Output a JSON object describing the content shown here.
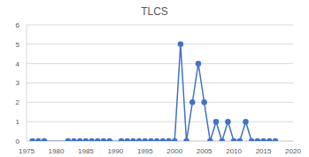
{
  "chart_data": {
    "type": "line",
    "title": "TLCS",
    "x": [
      1976,
      1977,
      1978,
      1982,
      1983,
      1984,
      1985,
      1986,
      1987,
      1988,
      1989,
      1991,
      1992,
      1993,
      1994,
      1995,
      1996,
      1997,
      1998,
      1999,
      2000,
      2001,
      2002,
      2003,
      2004,
      2005,
      2006,
      2007,
      2008,
      2009,
      2010,
      2011,
      2012,
      2013,
      2014,
      2015,
      2016,
      2017
    ],
    "values": [
      0,
      0,
      0,
      0,
      0,
      0,
      0,
      0,
      0,
      0,
      0,
      0,
      0,
      0,
      0,
      0,
      0,
      0,
      0,
      0,
      0,
      5,
      0,
      2,
      4,
      2,
      0,
      1,
      0,
      1,
      0,
      0,
      1,
      0,
      0,
      0,
      0,
      0
    ],
    "color": "#4472c4",
    "marker": "circle",
    "xlim": [
      1975,
      2020
    ],
    "xticks": [
      1975,
      1980,
      1985,
      1990,
      1995,
      2000,
      2005,
      2010,
      2015,
      2020
    ],
    "ylim": [
      0,
      6
    ],
    "yticks": [
      0,
      1,
      2,
      3,
      4,
      5,
      6
    ],
    "grid": true
  }
}
